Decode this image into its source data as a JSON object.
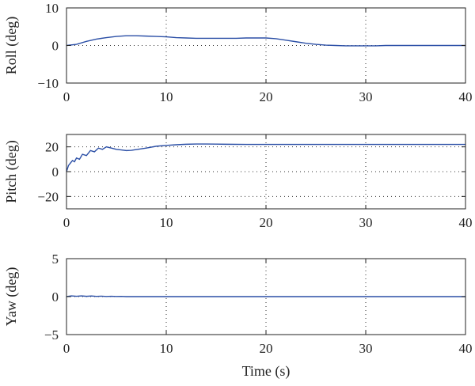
{
  "chart_data": [
    {
      "type": "line",
      "xlabel": "",
      "ylabel": "Roll (deg)",
      "xlim": [
        0,
        40
      ],
      "ylim": [
        -10,
        10
      ],
      "xticks": [
        0,
        10,
        20,
        30,
        40
      ],
      "yticks": [
        -10,
        0,
        10
      ],
      "grid": true,
      "series": [
        {
          "x": [
            0,
            1,
            2,
            3,
            4,
            5,
            6,
            7,
            8,
            9,
            10,
            11,
            12,
            13,
            14,
            15,
            16,
            17,
            18,
            19,
            20,
            21,
            22,
            23,
            24,
            25,
            26,
            27,
            28,
            29,
            30,
            31,
            32,
            33,
            34,
            35,
            36,
            37,
            38,
            39,
            40
          ],
          "y": [
            0,
            0.3,
            1.1,
            1.7,
            2.1,
            2.4,
            2.6,
            2.6,
            2.5,
            2.4,
            2.3,
            2.1,
            2.0,
            1.9,
            1.9,
            1.9,
            1.9,
            1.9,
            2.0,
            2.0,
            2.0,
            1.8,
            1.4,
            1.0,
            0.6,
            0.3,
            0.1,
            0.0,
            -0.1,
            -0.1,
            -0.1,
            -0.1,
            0.0,
            0.0,
            0.0,
            0.0,
            0.0,
            0.0,
            0.0,
            0.0,
            0.0
          ],
          "color": "#2b4fa6"
        }
      ]
    },
    {
      "type": "line",
      "xlabel": "",
      "ylabel": "Pitch (deg)",
      "xlim": [
        0,
        40
      ],
      "ylim": [
        -30,
        30
      ],
      "xticks": [
        0,
        10,
        20,
        30,
        40
      ],
      "yticks": [
        -20,
        0,
        20
      ],
      "grid": true,
      "series": [
        {
          "x": [
            0,
            0.2,
            0.4,
            0.6,
            0.8,
            1.0,
            1.3,
            1.6,
            2.0,
            2.4,
            2.8,
            3.2,
            3.6,
            4.0,
            4.5,
            5.0,
            5.5,
            6.0,
            6.5,
            7.0,
            8,
            9,
            10,
            11,
            12,
            13,
            14,
            15,
            16,
            18,
            20,
            25,
            30,
            35,
            40
          ],
          "y": [
            0,
            5,
            7,
            9,
            8,
            11,
            10,
            14,
            13,
            17,
            16,
            19,
            18,
            20,
            19,
            18,
            17.5,
            17,
            17.2,
            17.8,
            19,
            20.5,
            21.2,
            21.7,
            22.1,
            22.3,
            22.3,
            22.2,
            22.1,
            22.0,
            22.0,
            22.0,
            22.0,
            22.0,
            22.0
          ],
          "color": "#2b4fa6"
        }
      ]
    },
    {
      "type": "line",
      "xlabel": "Time (s)",
      "ylabel": "Yaw (deg)",
      "xlim": [
        0,
        40
      ],
      "ylim": [
        -5,
        5
      ],
      "xticks": [
        0,
        10,
        20,
        30,
        40
      ],
      "yticks": [
        -5,
        0,
        5
      ],
      "grid": true,
      "series": [
        {
          "x": [
            0,
            0.5,
            1,
            1.5,
            2,
            2.5,
            3,
            3.5,
            4,
            4.5,
            5,
            5.5,
            6,
            10,
            20,
            30,
            40
          ],
          "y": [
            0,
            0.1,
            0.05,
            0.1,
            0.04,
            0.08,
            0.03,
            0.06,
            0.02,
            0.05,
            0.02,
            0.03,
            0,
            0,
            0,
            0,
            0
          ],
          "color": "#2b4fa6"
        }
      ]
    }
  ]
}
